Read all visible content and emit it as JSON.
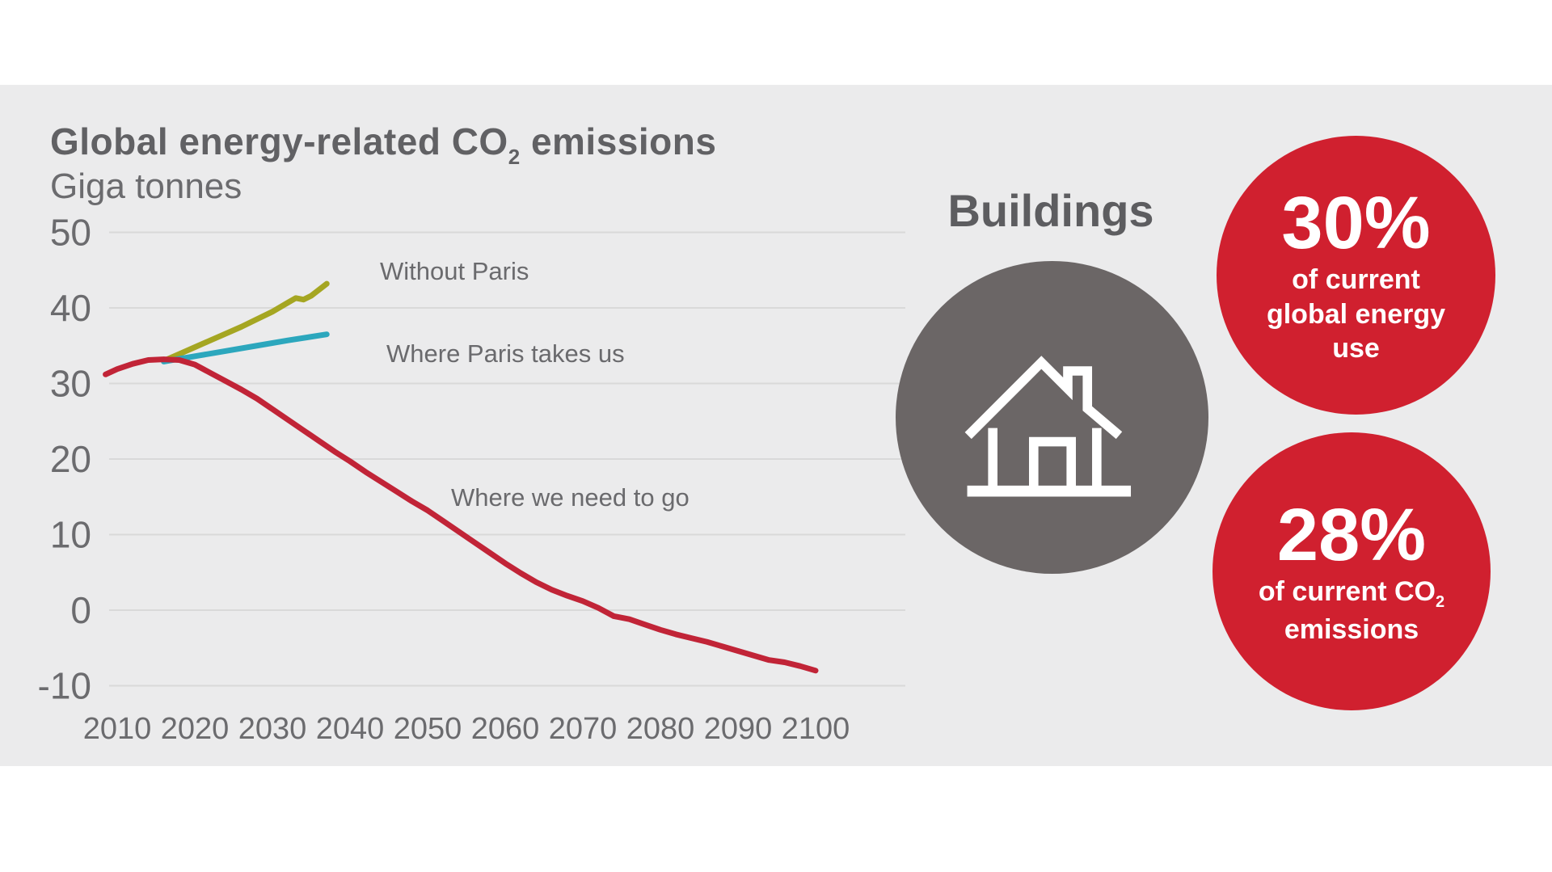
{
  "page": {
    "background": "#ffffff",
    "panel_background": "#ebebec",
    "gridline_color": "#d9d9d9",
    "text_gray": "#6b6b6e",
    "dark_gray": "#5d5d60"
  },
  "title": {
    "prefix": "Global energy-related CO",
    "sub": "2",
    "suffix": " emissions"
  },
  "subtitle": "Giga tonnes",
  "chart_data": {
    "type": "line",
    "title": "Global energy-related CO2 emissions",
    "ylabel": "Giga tonnes",
    "xlabel": "",
    "ylim": [
      -10,
      50
    ],
    "xlim": [
      2008,
      2100
    ],
    "grid": "horizontal",
    "legend_position": "inline-labels",
    "y_ticks": [
      50,
      40,
      30,
      20,
      10,
      0,
      -10
    ],
    "x_ticks": [
      2010,
      2020,
      2030,
      2040,
      2050,
      2060,
      2070,
      2080,
      2090,
      2100
    ],
    "series": [
      {
        "name": "Without Paris",
        "color": "#a5a622",
        "x": [
          2016,
          2018,
          2020,
          2022,
          2024,
          2026,
          2028,
          2030,
          2032,
          2033,
          2034,
          2035,
          2037
        ],
        "y": [
          33,
          33.9,
          34.8,
          35.7,
          36.6,
          37.5,
          38.5,
          39.5,
          40.7,
          41.3,
          41.1,
          41.6,
          43.2
        ]
      },
      {
        "name": "Where Paris takes us",
        "color": "#2ca7bd",
        "x": [
          2016,
          2020,
          2024,
          2028,
          2032,
          2037
        ],
        "y": [
          32.9,
          33.6,
          34.3,
          35.0,
          35.7,
          36.5
        ]
      },
      {
        "name": "Where we need to go",
        "color": "#c12437",
        "x": [
          2008.5,
          2010,
          2012,
          2014,
          2016,
          2018,
          2020,
          2022,
          2024,
          2026,
          2028,
          2030,
          2032,
          2034,
          2036,
          2038,
          2040,
          2042,
          2044,
          2046,
          2048,
          2050,
          2052,
          2054,
          2056,
          2058,
          2060,
          2062,
          2064,
          2066,
          2068,
          2070,
          2072,
          2074,
          2076,
          2078,
          2080,
          2082,
          2084,
          2086,
          2088,
          2090,
          2092,
          2094,
          2096,
          2098,
          2100
        ],
        "y": [
          31.2,
          31.9,
          32.6,
          33.1,
          33.2,
          33.1,
          32.5,
          31.4,
          30.3,
          29.2,
          28.0,
          26.6,
          25.2,
          23.8,
          22.4,
          21.0,
          19.7,
          18.3,
          17.0,
          15.7,
          14.4,
          13.2,
          11.8,
          10.4,
          9.0,
          7.6,
          6.2,
          4.9,
          3.7,
          2.7,
          1.9,
          1.2,
          0.3,
          -0.8,
          -1.2,
          -1.9,
          -2.6,
          -3.2,
          -3.7,
          -4.2,
          -4.8,
          -5.4,
          -6.0,
          -6.6,
          -6.9,
          -7.4,
          -8.0
        ]
      }
    ]
  },
  "line_labels": [
    {
      "text": "Without Paris"
    },
    {
      "text": "Where Paris takes us"
    },
    {
      "text": "Where we need to go"
    }
  ],
  "buildings": {
    "heading": "Buildings",
    "icon": "house-icon",
    "circle_color": "#6b6666",
    "icon_color": "#ffffff"
  },
  "stat_circles": [
    {
      "value": "30%",
      "line1": "of current",
      "line2": "global energy",
      "line3": "use",
      "color": "#d0202f"
    },
    {
      "value": "28%",
      "line1_prefix": "of current CO",
      "line1_sub": "2",
      "line2": "emissions",
      "color": "#d0202f"
    }
  ]
}
